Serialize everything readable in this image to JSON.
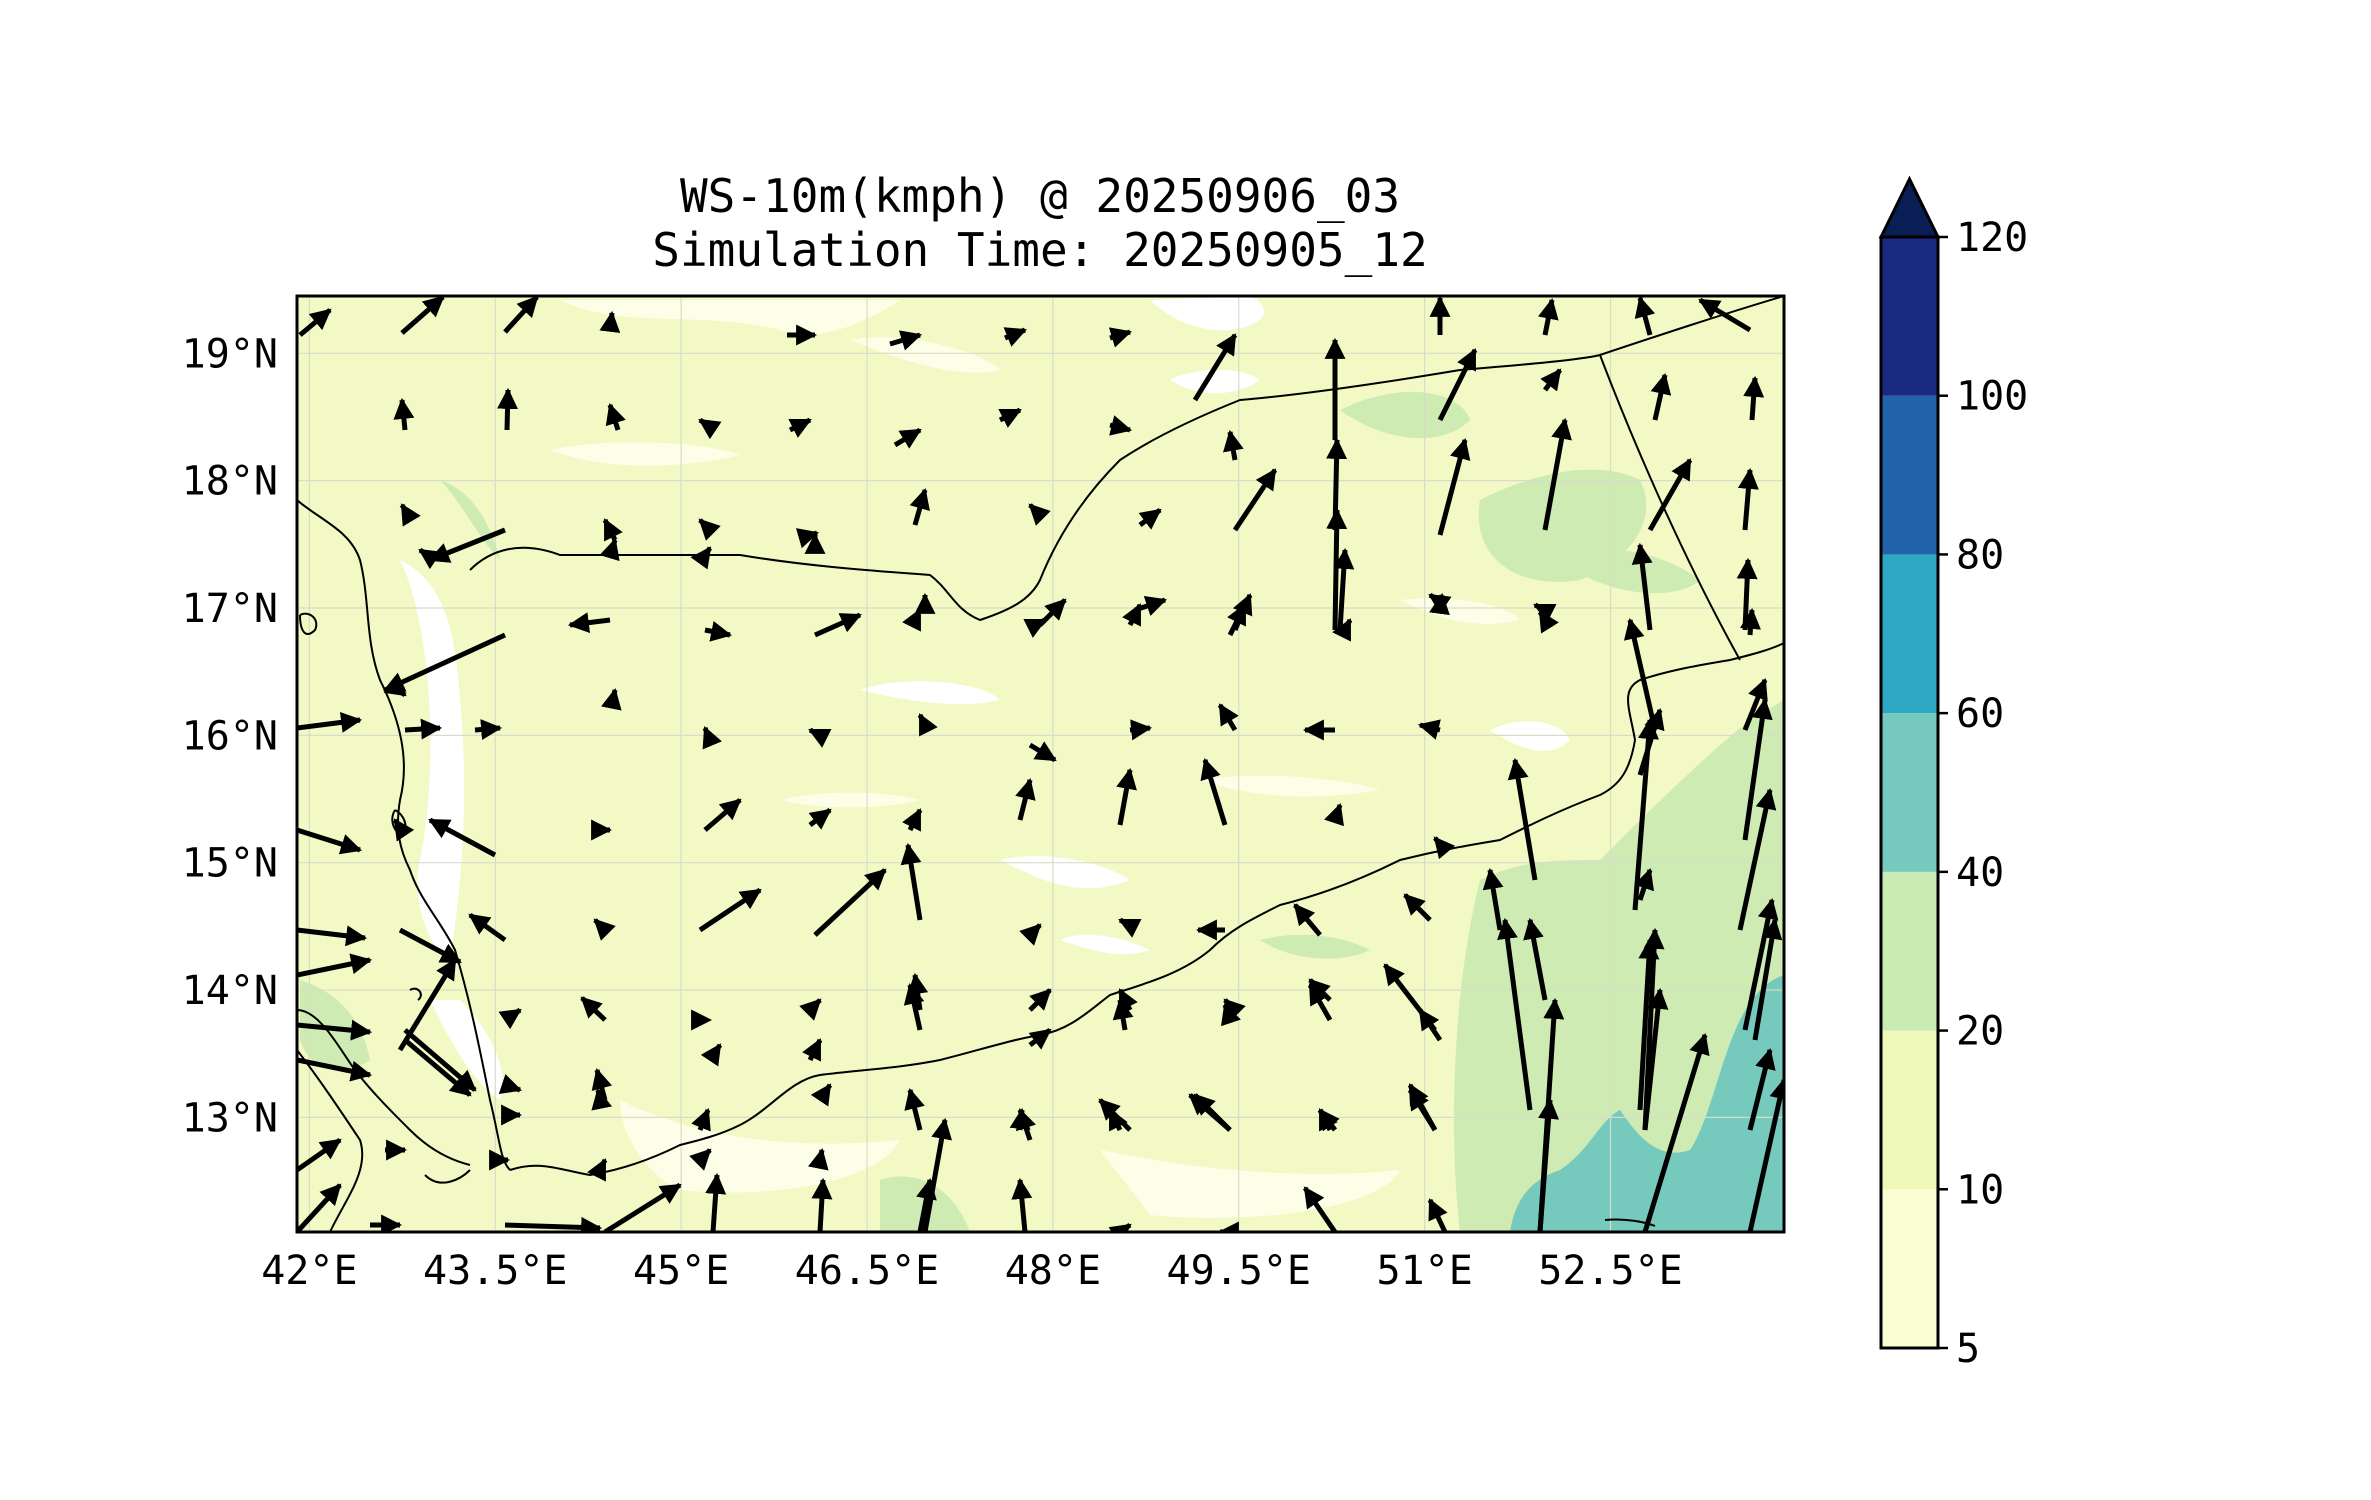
{
  "title": {
    "line1": "WS-10m(kmph) @ 20250906_03",
    "line2": "Simulation Time: 20250905_12"
  },
  "map": {
    "lon_range": [
      41.9,
      53.9
    ],
    "lat_range": [
      12.1,
      19.45
    ],
    "lon_ticks": [
      {
        "value": 42.0,
        "label": "42°E"
      },
      {
        "value": 43.5,
        "label": "43.5°E"
      },
      {
        "value": 45.0,
        "label": "45°E"
      },
      {
        "value": 46.5,
        "label": "46.5°E"
      },
      {
        "value": 48.0,
        "label": "48°E"
      },
      {
        "value": 49.5,
        "label": "49.5°E"
      },
      {
        "value": 51.0,
        "label": "51°E"
      },
      {
        "value": 52.5,
        "label": "52.5°E"
      }
    ],
    "lat_ticks": [
      {
        "value": 19,
        "label": "19°N"
      },
      {
        "value": 18,
        "label": "18°N"
      },
      {
        "value": 17,
        "label": "17°N"
      },
      {
        "value": 16,
        "label": "16°N"
      },
      {
        "value": 15,
        "label": "15°N"
      },
      {
        "value": 14,
        "label": "14°N"
      },
      {
        "value": 13,
        "label": "13°N"
      }
    ],
    "gridlines": true
  },
  "colorbar": {
    "levels": [
      5,
      10,
      20,
      40,
      60,
      80,
      100,
      120
    ],
    "labels": [
      "5",
      "10",
      "20",
      "40",
      "60",
      "80",
      "100",
      "120"
    ],
    "colors": [
      "#fbfdd3",
      "#eef8b8",
      "#cbebb5",
      "#76c9bd",
      "#2ea7c4",
      "#2164ab",
      "#1a2a80"
    ],
    "extend_color": "#0a1d54",
    "extend": "max"
  },
  "fill_colors": {
    "background": "#f2f9c4",
    "light": "#fdfee8",
    "white": "#ffffff",
    "green": "#cdebb3",
    "teal": "#76c9bd"
  }
}
